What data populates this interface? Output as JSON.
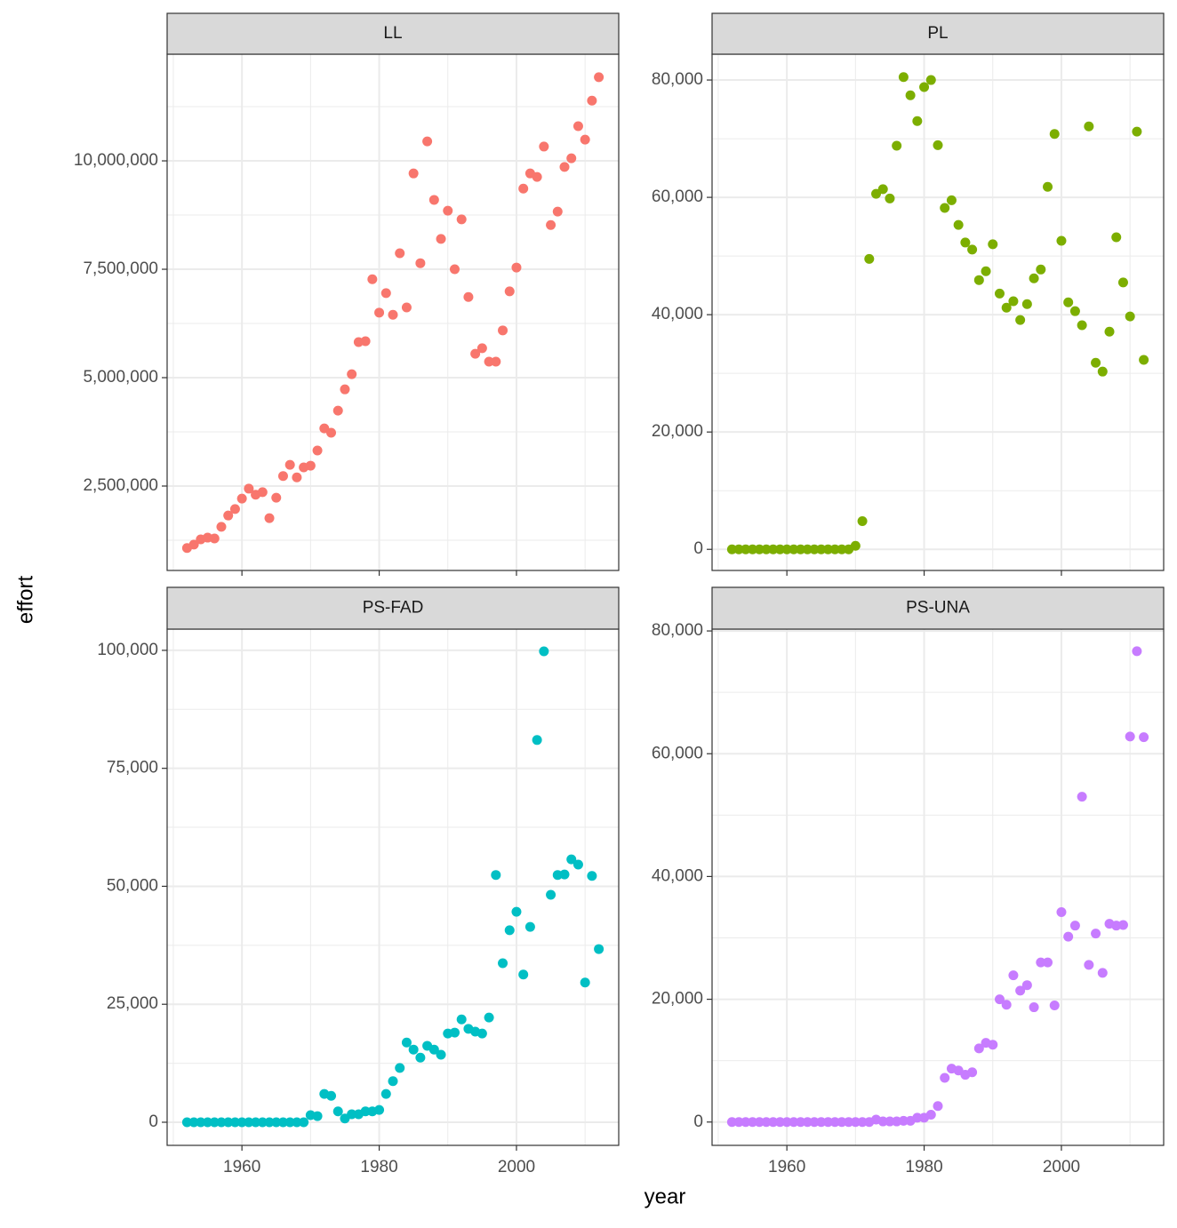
{
  "chart_data": {
    "type": "scatter",
    "x_label": "year",
    "y_label": "effort",
    "x": [
      1952,
      1953,
      1954,
      1955,
      1956,
      1957,
      1958,
      1959,
      1960,
      1961,
      1962,
      1963,
      1964,
      1965,
      1966,
      1967,
      1968,
      1969,
      1970,
      1971,
      1972,
      1973,
      1974,
      1975,
      1976,
      1977,
      1978,
      1979,
      1980,
      1981,
      1982,
      1983,
      1984,
      1985,
      1986,
      1987,
      1988,
      1989,
      1990,
      1991,
      1992,
      1993,
      1994,
      1995,
      1996,
      1997,
      1998,
      1999,
      2000,
      2001,
      2002,
      2003,
      2004,
      2005,
      2006,
      2007,
      2008,
      2009,
      2010,
      2011,
      2012
    ],
    "xlim": [
      1949.1,
      2014.9
    ],
    "xticks": [
      1960,
      1980,
      2000
    ],
    "grid": true,
    "panels": [
      {
        "title": "LL",
        "color": "#F8766D",
        "ylim": [
          553000,
          12460000
        ],
        "yticks": [
          {
            "value": 2500000,
            "label": "2,500,000"
          },
          {
            "value": 5000000,
            "label": "5,000,000"
          },
          {
            "value": 7500000,
            "label": "7,500,000"
          },
          {
            "value": 10000000,
            "label": "10,000,000"
          }
        ],
        "values": [
          1070000,
          1150000,
          1270000,
          1310000,
          1290000,
          1560000,
          1820000,
          1970000,
          2210000,
          2440000,
          2300000,
          2360000,
          1760000,
          2230000,
          2730000,
          2990000,
          2700000,
          2930000,
          2970000,
          3320000,
          3830000,
          3730000,
          4240000,
          4730000,
          5080000,
          5820000,
          5840000,
          7270000,
          6500000,
          6950000,
          6450000,
          7870000,
          6620000,
          9710000,
          7640000,
          10450000,
          9100000,
          8200000,
          8850000,
          7500000,
          8650000,
          6860000,
          5550000,
          5680000,
          5370000,
          5370000,
          6090000,
          6990000,
          7540000,
          9360000,
          9710000,
          9630000,
          10330000,
          8520000,
          8830000,
          9860000,
          10060000,
          10800000,
          10490000,
          11390000,
          11930000
        ]
      },
      {
        "title": "PL",
        "color": "#7CAE00",
        "ylim": [
          -3600,
          84400
        ],
        "yticks": [
          0,
          {
            "value": 20000,
            "label": "20,000"
          },
          {
            "value": 40000,
            "label": "40,000"
          },
          {
            "value": 60000,
            "label": "60,000"
          },
          {
            "value": 80000,
            "label": "80,000"
          }
        ],
        "values": [
          0,
          0,
          0,
          0,
          0,
          0,
          0,
          0,
          0,
          0,
          0,
          0,
          0,
          0,
          0,
          0,
          0,
          0,
          600,
          4800,
          49500,
          60600,
          61400,
          59800,
          68800,
          80500,
          77400,
          73000,
          78800,
          80000,
          68900,
          58200,
          59500,
          55300,
          52300,
          51100,
          45900,
          47400,
          52000,
          43600,
          41200,
          42300,
          39100,
          41800,
          46200,
          47700,
          61800,
          70800,
          52600,
          42100,
          40600,
          38200,
          72100,
          31800,
          30300,
          37100,
          53200,
          45500,
          39700,
          71200,
          32300
        ]
      },
      {
        "title": "PS-FAD",
        "color": "#00BFC4",
        "ylim": [
          -4900,
          104500
        ],
        "yticks": [
          0,
          {
            "value": 25000,
            "label": "25,000"
          },
          {
            "value": 50000,
            "label": "50,000"
          },
          {
            "value": 75000,
            "label": "75,000"
          },
          {
            "value": 100000,
            "label": "100,000"
          }
        ],
        "values": [
          0,
          0,
          0,
          0,
          0,
          0,
          0,
          0,
          0,
          0,
          0,
          0,
          0,
          0,
          0,
          0,
          0,
          0,
          1500,
          1300,
          6000,
          5600,
          2300,
          800,
          1700,
          1700,
          2300,
          2300,
          2600,
          6000,
          8700,
          11500,
          16900,
          15400,
          13700,
          16200,
          15400,
          14300,
          18800,
          19000,
          21800,
          19800,
          19200,
          18800,
          22200,
          52400,
          33700,
          40700,
          44600,
          31300,
          41400,
          81000,
          99800,
          48200,
          52400,
          52500,
          55700,
          54600,
          29600,
          52200,
          36700
        ]
      },
      {
        "title": "PS-UNA",
        "color": "#C77CFF",
        "ylim": [
          -3800,
          80300
        ],
        "yticks": [
          0,
          {
            "value": 20000,
            "label": "20,000"
          },
          {
            "value": 40000,
            "label": "40,000"
          },
          {
            "value": 60000,
            "label": "60,000"
          },
          {
            "value": 80000,
            "label": "80,000"
          }
        ],
        "values": [
          0,
          0,
          0,
          0,
          0,
          0,
          0,
          0,
          0,
          0,
          0,
          0,
          0,
          0,
          0,
          0,
          0,
          0,
          0,
          0,
          0,
          400,
          100,
          100,
          100,
          200,
          200,
          700,
          700,
          1200,
          2600,
          7200,
          8700,
          8400,
          7700,
          8100,
          12000,
          12900,
          12600,
          20000,
          19100,
          23900,
          21400,
          22300,
          18700,
          26000,
          26000,
          19000,
          34200,
          30200,
          32000,
          53000,
          25600,
          30700,
          24300,
          32300,
          32000,
          32100,
          62800,
          76700,
          62700
        ]
      }
    ]
  }
}
